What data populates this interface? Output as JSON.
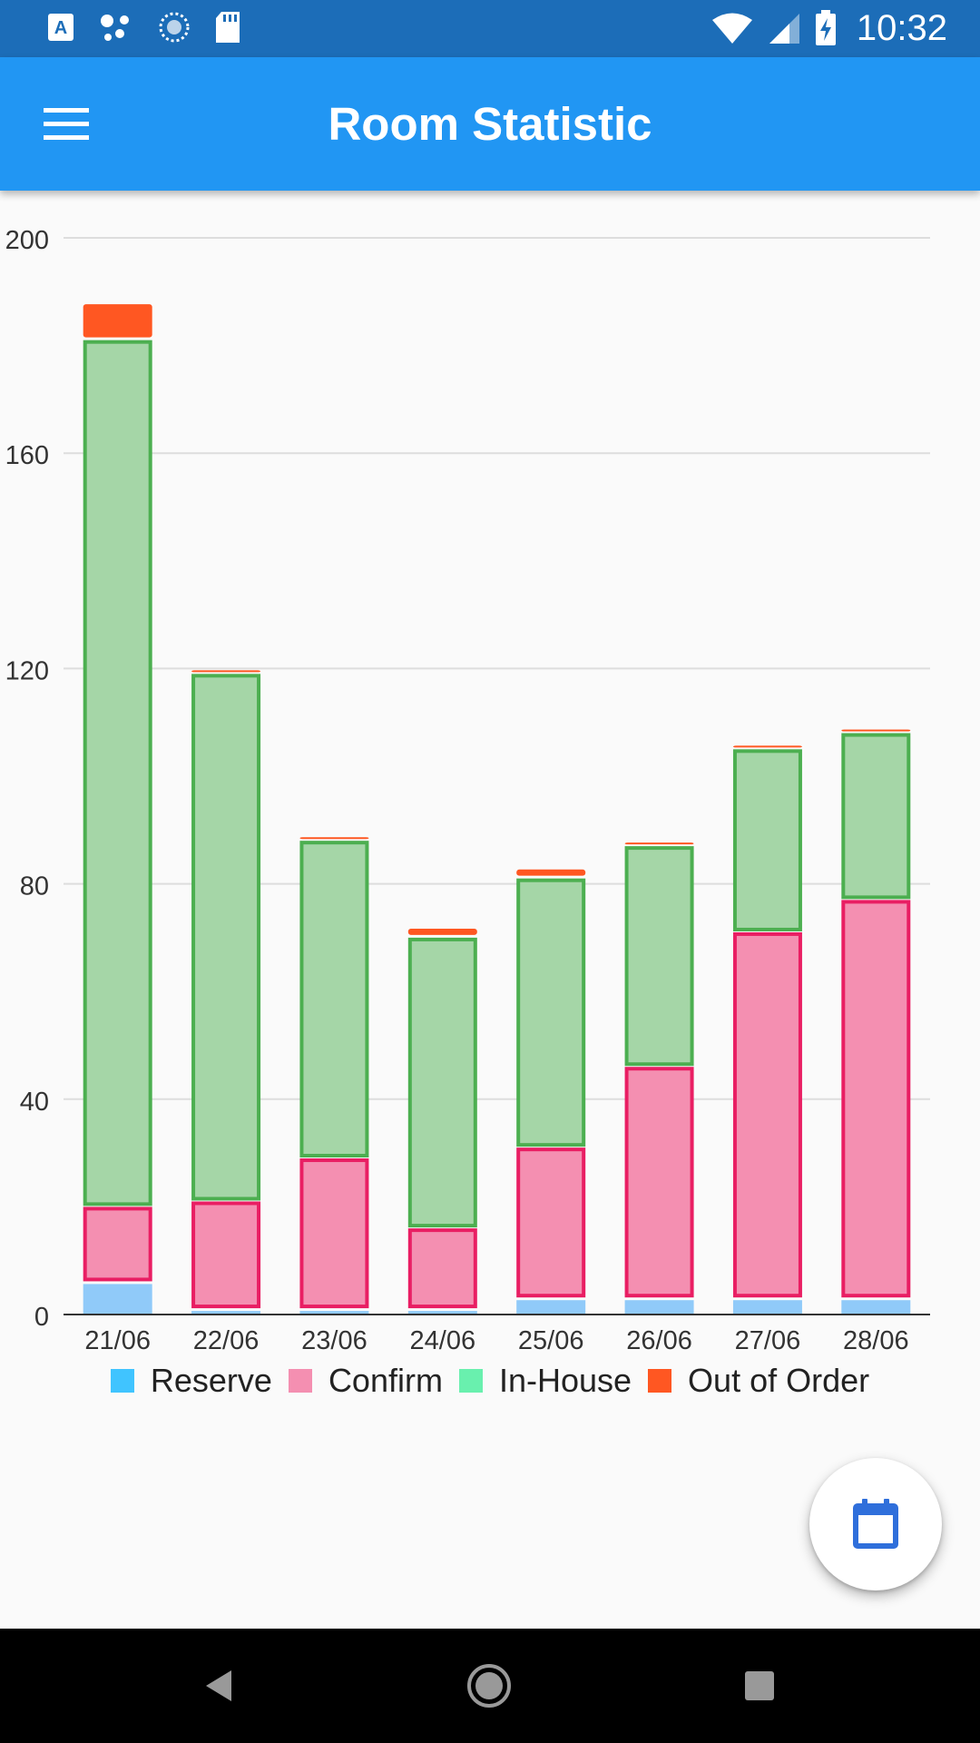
{
  "status_bar": {
    "time": "10:32",
    "left_icons": [
      "a-text-icon",
      "assistant-dots-icon",
      "sync-circle-icon",
      "sd-card-icon"
    ],
    "right_icons": [
      "wifi-icon",
      "signal-icon",
      "battery-charging-icon"
    ]
  },
  "app_bar": {
    "title": "Room Statistic",
    "menu_icon": "menu-icon"
  },
  "colors": {
    "status_bar": "#1c6db8",
    "app_bar": "#2196f3",
    "reserve_fill": "#90caf9",
    "confirm_fill": "#f48fb1",
    "confirm_stroke": "#e91e63",
    "inhouse_fill": "#a5d6a7",
    "inhouse_stroke": "#4caf50",
    "out_of_order": "#ff5722",
    "legend_reserve": "#40c4ff",
    "legend_confirm": "#f48fb1",
    "legend_inhouse": "#69f0ae",
    "legend_out_of_order": "#ff5722"
  },
  "chart_data": {
    "type": "bar",
    "stacked": true,
    "categories": [
      "21/06",
      "22/06",
      "23/06",
      "24/06",
      "25/06",
      "26/06",
      "27/06",
      "28/06"
    ],
    "series": [
      {
        "name": "Reserve",
        "values": [
          6,
          1,
          1,
          1,
          3,
          3,
          3,
          3
        ]
      },
      {
        "name": "Confirm",
        "values": [
          14,
          20,
          28,
          15,
          28,
          43,
          68,
          74
        ]
      },
      {
        "name": "In-House",
        "values": [
          161,
          98,
          59,
          54,
          50,
          41,
          34,
          31
        ]
      },
      {
        "name": "Out of Order",
        "values": [
          7,
          1,
          1,
          2,
          2,
          1,
          1,
          1
        ]
      }
    ],
    "ylim": [
      0,
      200
    ],
    "yticks": [
      0,
      40,
      80,
      120,
      160,
      200
    ],
    "grid": true,
    "legend_position": "bottom"
  },
  "legend": {
    "items": [
      {
        "label": "Reserve"
      },
      {
        "label": "Confirm"
      },
      {
        "label": "In-House"
      },
      {
        "label": "Out of Order"
      }
    ]
  },
  "fab": {
    "icon": "calendar-icon"
  },
  "nav_bar": {
    "icons": [
      "back-icon",
      "home-icon",
      "recents-icon"
    ]
  }
}
